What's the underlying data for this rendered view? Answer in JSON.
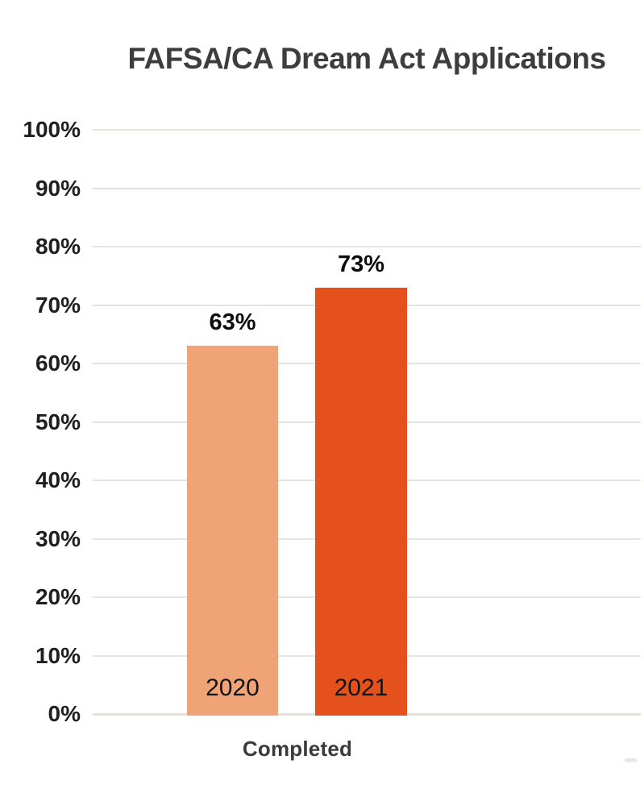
{
  "page": {
    "background": "#ffffff"
  },
  "chart_data": {
    "type": "bar",
    "title": "FAFSA/CA Dream Act Applications",
    "categories": [
      "2020",
      "2021"
    ],
    "values": [
      63,
      73
    ],
    "value_labels": [
      "63%",
      "73%"
    ],
    "series_colors": [
      "#f0a377",
      "#e4511c"
    ],
    "xlabel": "Completed",
    "ylabel": "",
    "ylim": [
      0,
      100
    ],
    "ytick_step": 10,
    "yticks": [
      "0%",
      "10%",
      "20%",
      "30%",
      "40%",
      "50%",
      "60%",
      "70%",
      "80%",
      "90%",
      "100%"
    ],
    "grid": true,
    "legend": false,
    "colors": {
      "gridline": "#e7e3dd",
      "axis_line": "#e5e1da",
      "title_text": "#3d3d3f",
      "tick_text": "#1f1f1f",
      "value_label_text": "#0c0c0c",
      "category_label_text": "#131313",
      "xlabel_text": "#3a3a3a"
    }
  }
}
